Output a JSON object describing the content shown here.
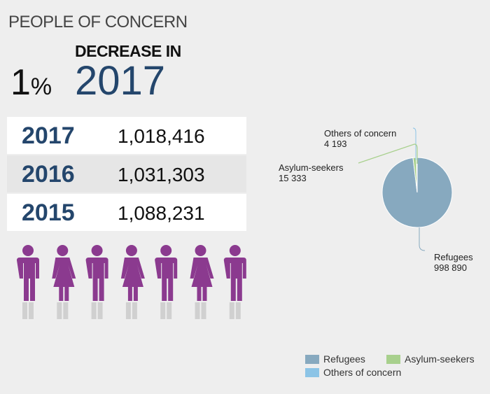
{
  "header": {
    "title": "PEOPLE OF CONCERN",
    "decrease_label": "DECREASE IN",
    "percent_value": "1",
    "percent_symbol": "%",
    "year": "2017"
  },
  "table": [
    {
      "year": "2017",
      "value": "1,018,416"
    },
    {
      "year": "2016",
      "value": "1,031,303"
    },
    {
      "year": "2015",
      "value": "1,088,231"
    }
  ],
  "figures": [
    "male",
    "female",
    "male",
    "female",
    "male",
    "female",
    "male"
  ],
  "colors": {
    "figure": "#8b3a8f",
    "shadow": "#d0d0d0",
    "refugees": "#87a9bf",
    "asylum": "#a8d08d",
    "others": "#8cc4e6"
  },
  "chart_data": {
    "type": "pie",
    "slices": [
      {
        "name": "Refugees",
        "value": 998890,
        "label_value": "998 890",
        "color": "#87a9bf"
      },
      {
        "name": "Asylum-seekers",
        "value": 15333,
        "label_value": "15 333",
        "color": "#a8d08d"
      },
      {
        "name": "Others of concern",
        "value": 4193,
        "label_value": "4 193",
        "color": "#8cc4e6"
      }
    ],
    "legend": {
      "position": "bottom-right",
      "entries": [
        "Refugees",
        "Asylum-seekers",
        "Others of concern"
      ]
    }
  }
}
